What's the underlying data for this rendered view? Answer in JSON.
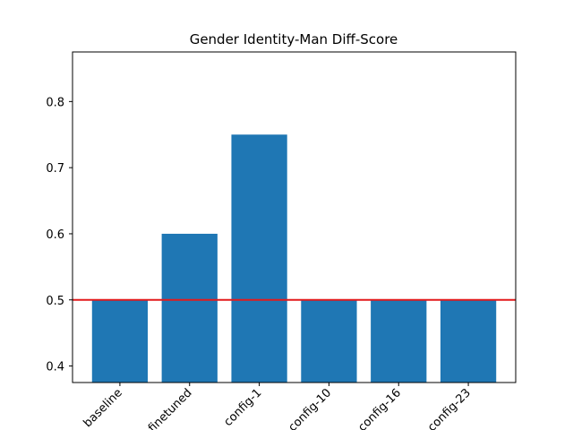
{
  "chart_data": {
    "type": "bar",
    "title": "Gender Identity-Man Diff-Score",
    "xlabel": "",
    "ylabel": "",
    "categories": [
      "baseline",
      "finetuned",
      "config-1",
      "config-10",
      "config-16",
      "config-23"
    ],
    "values": [
      0.5,
      0.6,
      0.75,
      0.5,
      0.5,
      0.5
    ],
    "ylim": [
      0.375,
      0.875
    ],
    "yticks": [
      0.4,
      0.5,
      0.6,
      0.7,
      0.8
    ],
    "ytick_labels": [
      "0.4",
      "0.5",
      "0.6",
      "0.7",
      "0.8"
    ],
    "reference_line": {
      "y": 0.5,
      "color": "#e31a1c"
    },
    "bar_color": "#1f77b4",
    "grid": false,
    "legend": "none"
  }
}
